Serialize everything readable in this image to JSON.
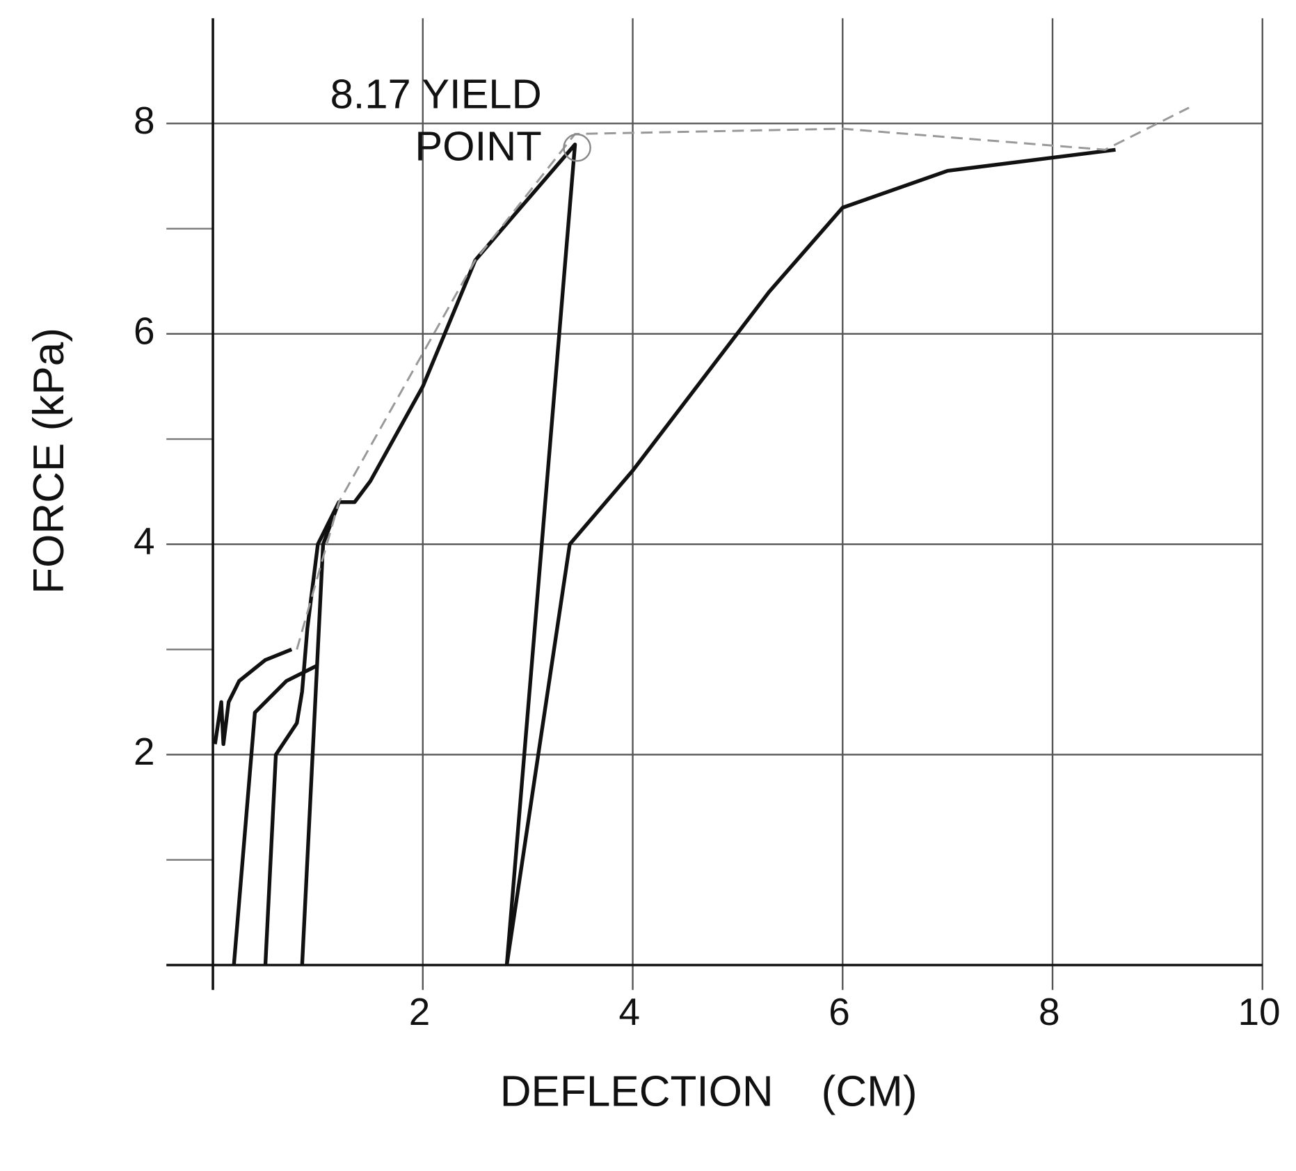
{
  "chart_data": {
    "type": "line",
    "x_label": "DEFLECTION    (CM)",
    "y_label": "FORCE (kPa)",
    "xlim": [
      0,
      10
    ],
    "ylim": [
      0,
      9
    ],
    "xticks": [
      2,
      4,
      6,
      8,
      10
    ],
    "yticks": [
      2,
      4,
      6,
      8
    ],
    "y_minor_ticks": [
      1,
      3,
      5,
      7
    ],
    "grid": true,
    "annotation": {
      "lines": [
        "8.17 YIELD",
        "POINT"
      ],
      "x": 3.47,
      "y": 7.77
    },
    "series": [
      {
        "color": "#111111",
        "style": "solid",
        "x": [
          0.02,
          0.08,
          0.1,
          0.15,
          0.25,
          0.5,
          0.75
        ],
        "values": [
          2.1,
          2.5,
          2.1,
          2.5,
          2.7,
          2.9,
          3.0
        ]
      },
      {
        "color": "#111111",
        "style": "solid",
        "x": [
          0.2,
          0.4,
          0.7,
          1.0
        ],
        "values": [
          0,
          2.4,
          2.7,
          2.85
        ]
      },
      {
        "color": "#111111",
        "style": "solid",
        "x": [
          0.5,
          0.6,
          0.8,
          0.85,
          0.9,
          1.0,
          1.2,
          1.35,
          1.5,
          2.0,
          2.5,
          3.45,
          2.8
        ],
        "values": [
          0,
          2.0,
          2.3,
          2.6,
          3.2,
          4.0,
          4.4,
          4.4,
          4.6,
          5.5,
          6.7,
          7.8,
          0
        ]
      },
      {
        "color": "#111111",
        "style": "solid",
        "x": [
          0.85,
          1.05,
          1.2
        ],
        "values": [
          0,
          4.0,
          4.4
        ]
      },
      {
        "color": "#111111",
        "style": "solid",
        "x": [
          2.8,
          3.4,
          4.0,
          5.3,
          6.0,
          7.0,
          8.6
        ],
        "values": [
          0,
          4.0,
          4.7,
          6.4,
          7.2,
          7.55,
          7.75
        ]
      },
      {
        "color": "#999999",
        "style": "dashed",
        "x": [
          0.8,
          1.2,
          2.5,
          3.45,
          6.0,
          8.5,
          9.3
        ],
        "values": [
          3.0,
          4.4,
          6.7,
          7.9,
          7.95,
          7.75,
          8.15
        ]
      }
    ]
  }
}
